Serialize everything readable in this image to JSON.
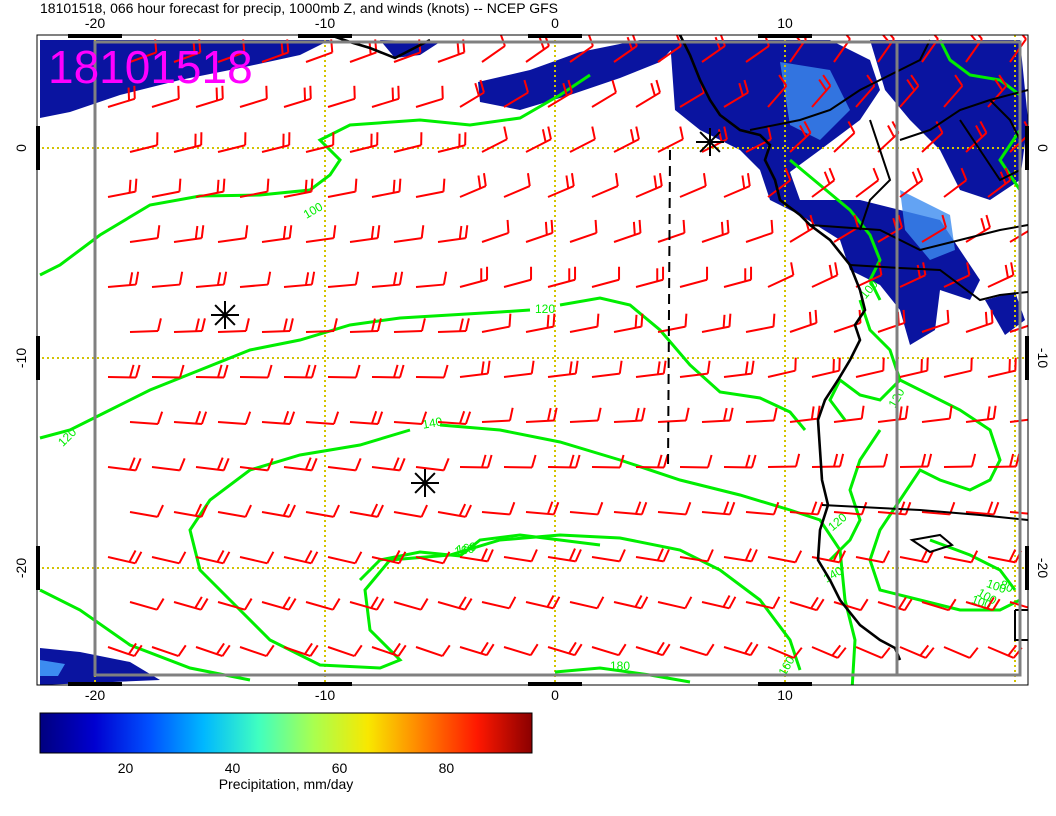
{
  "title": "18101518, 066 hour forecast for precip, 1000mb Z, and winds (knots) -- NCEP GFS",
  "stamp": "18101518",
  "stamp_color": "#ff00ff",
  "colors": {
    "barb": "#ff0000",
    "contour": "#00ee00",
    "grid": "#d4c400",
    "coast": "#000000",
    "border": "#808080",
    "precip_dark": "#0a14a0",
    "precip_light": "#3c8cf0"
  },
  "axes": {
    "top_ticks": [
      "-20",
      "-10",
      "0",
      "10"
    ],
    "bottom_ticks": [
      "-20",
      "-10",
      "0",
      "10"
    ],
    "left_ticks": [
      "0",
      "-10",
      "-20"
    ],
    "right_ticks": [
      "0",
      "-10",
      "-20"
    ]
  },
  "contour_labels": [
    {
      "text": "100"
    },
    {
      "text": "120"
    },
    {
      "text": "120"
    },
    {
      "text": "140"
    },
    {
      "text": "160"
    },
    {
      "text": "160"
    },
    {
      "text": "140"
    },
    {
      "text": "100"
    },
    {
      "text": "120"
    },
    {
      "text": "100"
    },
    {
      "text": "100"
    },
    {
      "text": "80"
    },
    {
      "text": "120"
    },
    {
      "text": "100"
    },
    {
      "text": "180"
    },
    {
      "text": "160"
    }
  ],
  "markers": [
    {
      "name": "low-center-1",
      "type": "asterisk"
    },
    {
      "name": "high-center-1",
      "type": "asterisk"
    },
    {
      "name": "high-center-2",
      "type": "asterisk"
    }
  ],
  "colorbar": {
    "label": "Precipitation, mm/day",
    "ticks": [
      "20",
      "40",
      "60",
      "80"
    ],
    "stops": [
      "#00007f",
      "#0000d0",
      "#0050ff",
      "#00b8ff",
      "#40ffc0",
      "#a8ff50",
      "#f8e800",
      "#ff8000",
      "#ff1800",
      "#8a0000"
    ]
  }
}
